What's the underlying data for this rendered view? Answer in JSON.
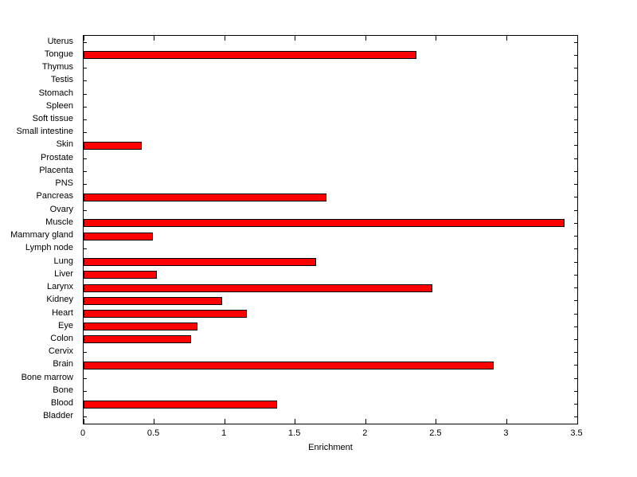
{
  "chart_data": {
    "type": "bar",
    "orientation": "horizontal",
    "title": "",
    "xlabel": "Enrichment",
    "ylabel": "",
    "xlim": [
      0,
      3.5
    ],
    "xticks": [
      0,
      0.5,
      1,
      1.5,
      2,
      2.5,
      3,
      3.5
    ],
    "xtick_labels": [
      "0",
      "0.5",
      "1",
      "1.5",
      "2",
      "2.5",
      "3",
      "3.5"
    ],
    "grid": false,
    "legend": "none",
    "bar_color": "#ff0000",
    "bar_edge_color": "#000000",
    "axis_color": "#000000",
    "categories_top_to_bottom": [
      "Uterus",
      "Tongue",
      "Thymus",
      "Testis",
      "Stomach",
      "Spleen",
      "Soft tissue",
      "Small intestine",
      "Skin",
      "Prostate",
      "Placenta",
      "PNS",
      "Pancreas",
      "Ovary",
      "Muscle",
      "Mammary gland",
      "Lymph node",
      "Lung",
      "Liver",
      "Larynx",
      "Kidney",
      "Heart",
      "Eye",
      "Colon",
      "Cervix",
      "Brain",
      "Bone marrow",
      "Bone",
      "Blood",
      "Bladder"
    ],
    "values": [
      0,
      2.36,
      0,
      0,
      0,
      0,
      0,
      0,
      0.41,
      0,
      0,
      0,
      1.72,
      0,
      3.41,
      0.49,
      0,
      1.65,
      0.52,
      2.47,
      0.98,
      1.16,
      0.81,
      0.76,
      0,
      2.91,
      0,
      0,
      1.37,
      0
    ]
  }
}
